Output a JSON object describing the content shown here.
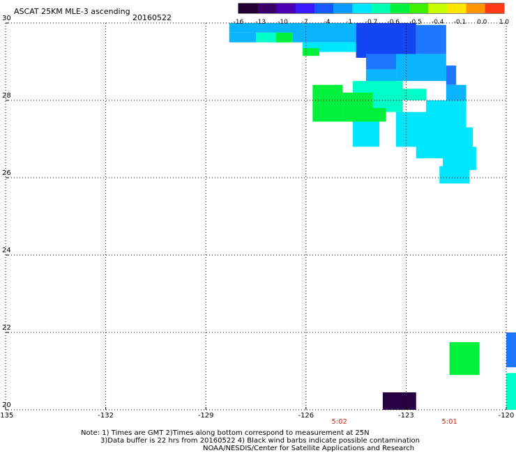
{
  "header": {
    "title": "ASCAT 25KM MLE-3 ascending",
    "date": "20160522"
  },
  "colorbar": {
    "labels": [
      "-16",
      "-13",
      "-10",
      "-7",
      "-4",
      "-1",
      "-0.7",
      "-0.6",
      "-0.5",
      "-0.4",
      "-0.1",
      "0.0",
      "1.0"
    ],
    "colors": [
      "#220033",
      "#3a0066",
      "#4a00b0",
      "#3a18ff",
      "#1458ff",
      "#0a9cff",
      "#00e6ff",
      "#00ffb4",
      "#00f03c",
      "#3cf000",
      "#c8ff00",
      "#ffe600",
      "#ff9600",
      "#ff3a14"
    ]
  },
  "axes": {
    "x_ticks": [
      "-135",
      "-132",
      "-129",
      "-126",
      "-123",
      "-120"
    ],
    "y_ticks": [
      "30",
      "28",
      "26",
      "24",
      "22",
      "20"
    ],
    "x_range": [
      -135,
      -120
    ],
    "y_range": [
      20,
      30
    ]
  },
  "times": [
    {
      "label": "5:02",
      "lon": -125.0
    },
    {
      "label": "5:01",
      "lon": -121.7
    }
  ],
  "notes": {
    "line1": "Note: 1) Times are GMT 2)Times along bottom correspond to measurement at 25N",
    "line2": "3)Data buffer is 22 hrs from 20160522 4) Black wind barbs indicate possible contamination",
    "line3": "NOAA/NESDIS/Center for Satellite Applications and Research"
  },
  "colors": {
    "deep_blue": "#1446f5",
    "blue": "#1e78ff",
    "light_blue": "#0ab4ff",
    "cyan": "#00e6ff",
    "aqua": "#00ffc8",
    "green": "#00f03c",
    "purple": "#2a0044"
  },
  "swath_cells": [
    {
      "lon0": -128.3,
      "lon1": -126.1,
      "lat0": 29.75,
      "lat1": 30.0,
      "c": "light_blue"
    },
    {
      "lon0": -127.5,
      "lon1": -126.6,
      "lat0": 29.5,
      "lat1": 29.75,
      "c": "aqua"
    },
    {
      "lon0": -126.9,
      "lon1": -126.4,
      "lat0": 29.5,
      "lat1": 29.75,
      "c": "green"
    },
    {
      "lon0": -128.3,
      "lon1": -127.5,
      "lat0": 29.5,
      "lat1": 29.75,
      "c": "light_blue"
    },
    {
      "lon0": -126.4,
      "lon1": -124.5,
      "lat0": 29.5,
      "lat1": 30.0,
      "c": "light_blue"
    },
    {
      "lon0": -126.1,
      "lon1": -124.5,
      "lat0": 29.25,
      "lat1": 29.5,
      "c": "cyan"
    },
    {
      "lon0": -126.1,
      "lon1": -125.6,
      "lat0": 29.15,
      "lat1": 29.35,
      "c": "green"
    },
    {
      "lon0": -124.5,
      "lon1": -122.7,
      "lat0": 29.1,
      "lat1": 30.0,
      "c": "deep_blue"
    },
    {
      "lon0": -122.7,
      "lon1": -121.8,
      "lat0": 29.2,
      "lat1": 29.95,
      "c": "blue"
    },
    {
      "lon0": -124.2,
      "lon1": -123.3,
      "lat0": 28.8,
      "lat1": 29.2,
      "c": "blue"
    },
    {
      "lon0": -123.3,
      "lon1": -121.8,
      "lat0": 28.5,
      "lat1": 29.2,
      "c": "light_blue"
    },
    {
      "lon0": -124.2,
      "lon1": -123.3,
      "lat0": 28.2,
      "lat1": 28.8,
      "c": "light_blue"
    },
    {
      "lon0": -121.8,
      "lon1": -121.5,
      "lat0": 28.4,
      "lat1": 28.9,
      "c": "blue"
    },
    {
      "lon0": -121.8,
      "lon1": -121.2,
      "lat0": 27.8,
      "lat1": 28.4,
      "c": "light_blue"
    },
    {
      "lon0": -124.6,
      "lon1": -123.1,
      "lat0": 27.7,
      "lat1": 28.5,
      "c": "aqua"
    },
    {
      "lon0": -123.1,
      "lon1": -122.4,
      "lat0": 28.0,
      "lat1": 28.3,
      "c": "aqua"
    },
    {
      "lon0": -122.4,
      "lon1": -121.2,
      "lat0": 27.3,
      "lat1": 28.0,
      "c": "cyan"
    },
    {
      "lon0": -123.3,
      "lon1": -121.2,
      "lat0": 26.8,
      "lat1": 27.7,
      "c": "cyan"
    },
    {
      "lon0": -124.6,
      "lon1": -123.8,
      "lat0": 26.8,
      "lat1": 27.5,
      "c": "cyan"
    },
    {
      "lon0": -122.7,
      "lon1": -121.0,
      "lat0": 26.5,
      "lat1": 27.3,
      "c": "cyan"
    },
    {
      "lon0": -121.9,
      "lon1": -120.9,
      "lat0": 26.2,
      "lat1": 26.8,
      "c": "cyan"
    },
    {
      "lon0": -122.0,
      "lon1": -121.1,
      "lat0": 25.85,
      "lat1": 26.3,
      "c": "cyan"
    },
    {
      "lon0": -124.9,
      "lon1": -124.0,
      "lat0": 27.45,
      "lat1": 28.2,
      "c": "green"
    },
    {
      "lon0": -124.0,
      "lon1": -123.6,
      "lat0": 27.45,
      "lat1": 27.8,
      "c": "green"
    },
    {
      "lon0": -125.8,
      "lon1": -124.9,
      "lat0": 27.45,
      "lat1": 28.4,
      "c": "green"
    },
    {
      "lon0": -121.7,
      "lon1": -120.8,
      "lat0": 20.9,
      "lat1": 21.75,
      "c": "green"
    },
    {
      "lon0": -120.0,
      "lon1": -119.6,
      "lat0": 21.1,
      "lat1": 22.0,
      "c": "blue"
    },
    {
      "lon0": -120.0,
      "lon1": -119.6,
      "lat0": 20.0,
      "lat1": 20.95,
      "c": "aqua"
    },
    {
      "lon0": -123.7,
      "lon1": -122.7,
      "lat0": 20.0,
      "lat1": 20.45,
      "c": "purple"
    }
  ]
}
